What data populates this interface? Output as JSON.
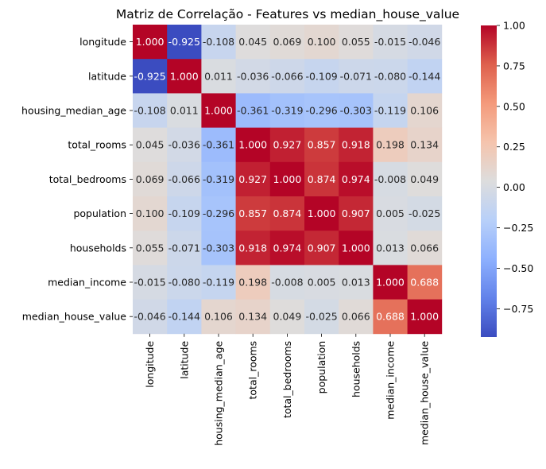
{
  "chart_data": {
    "type": "heatmap",
    "title": "Matriz de Correlação - Features vs median_house_value",
    "xlabel": "",
    "ylabel": "",
    "labels": [
      "longitude",
      "latitude",
      "housing_median_age",
      "total_rooms",
      "total_bedrooms",
      "population",
      "households",
      "median_income",
      "median_house_value"
    ],
    "matrix": [
      [
        1.0,
        -0.925,
        -0.108,
        0.045,
        0.069,
        0.1,
        0.055,
        -0.015,
        -0.046
      ],
      [
        -0.925,
        1.0,
        0.011,
        -0.036,
        -0.066,
        -0.109,
        -0.071,
        -0.08,
        -0.144
      ],
      [
        -0.108,
        0.011,
        1.0,
        -0.361,
        -0.319,
        -0.296,
        -0.303,
        -0.119,
        0.106
      ],
      [
        0.045,
        -0.036,
        -0.361,
        1.0,
        0.927,
        0.857,
        0.918,
        0.198,
        0.134
      ],
      [
        0.069,
        -0.066,
        -0.319,
        0.927,
        1.0,
        0.874,
        0.974,
        -0.008,
        0.049
      ],
      [
        0.1,
        -0.109,
        -0.296,
        0.857,
        0.874,
        1.0,
        0.907,
        0.005,
        -0.025
      ],
      [
        0.055,
        -0.071,
        -0.303,
        0.918,
        0.974,
        0.907,
        1.0,
        0.013,
        0.066
      ],
      [
        -0.015,
        -0.08,
        -0.119,
        0.198,
        -0.008,
        0.005,
        0.013,
        1.0,
        0.688
      ],
      [
        -0.046,
        -0.144,
        0.106,
        0.134,
        0.049,
        -0.025,
        0.066,
        0.688,
        1.0
      ]
    ],
    "colormap": "coolwarm",
    "colorbar": {
      "range": [
        -0.925,
        1.0
      ],
      "ticks": [
        1.0,
        0.75,
        0.5,
        0.25,
        0.0,
        -0.25,
        -0.5,
        -0.75
      ],
      "tick_labels": [
        "1.00",
        "0.75",
        "0.50",
        "0.25",
        "0.00",
        "−0.25",
        "−0.50",
        "−0.75"
      ]
    },
    "annotation_format": "3 decimals",
    "grid": false
  }
}
